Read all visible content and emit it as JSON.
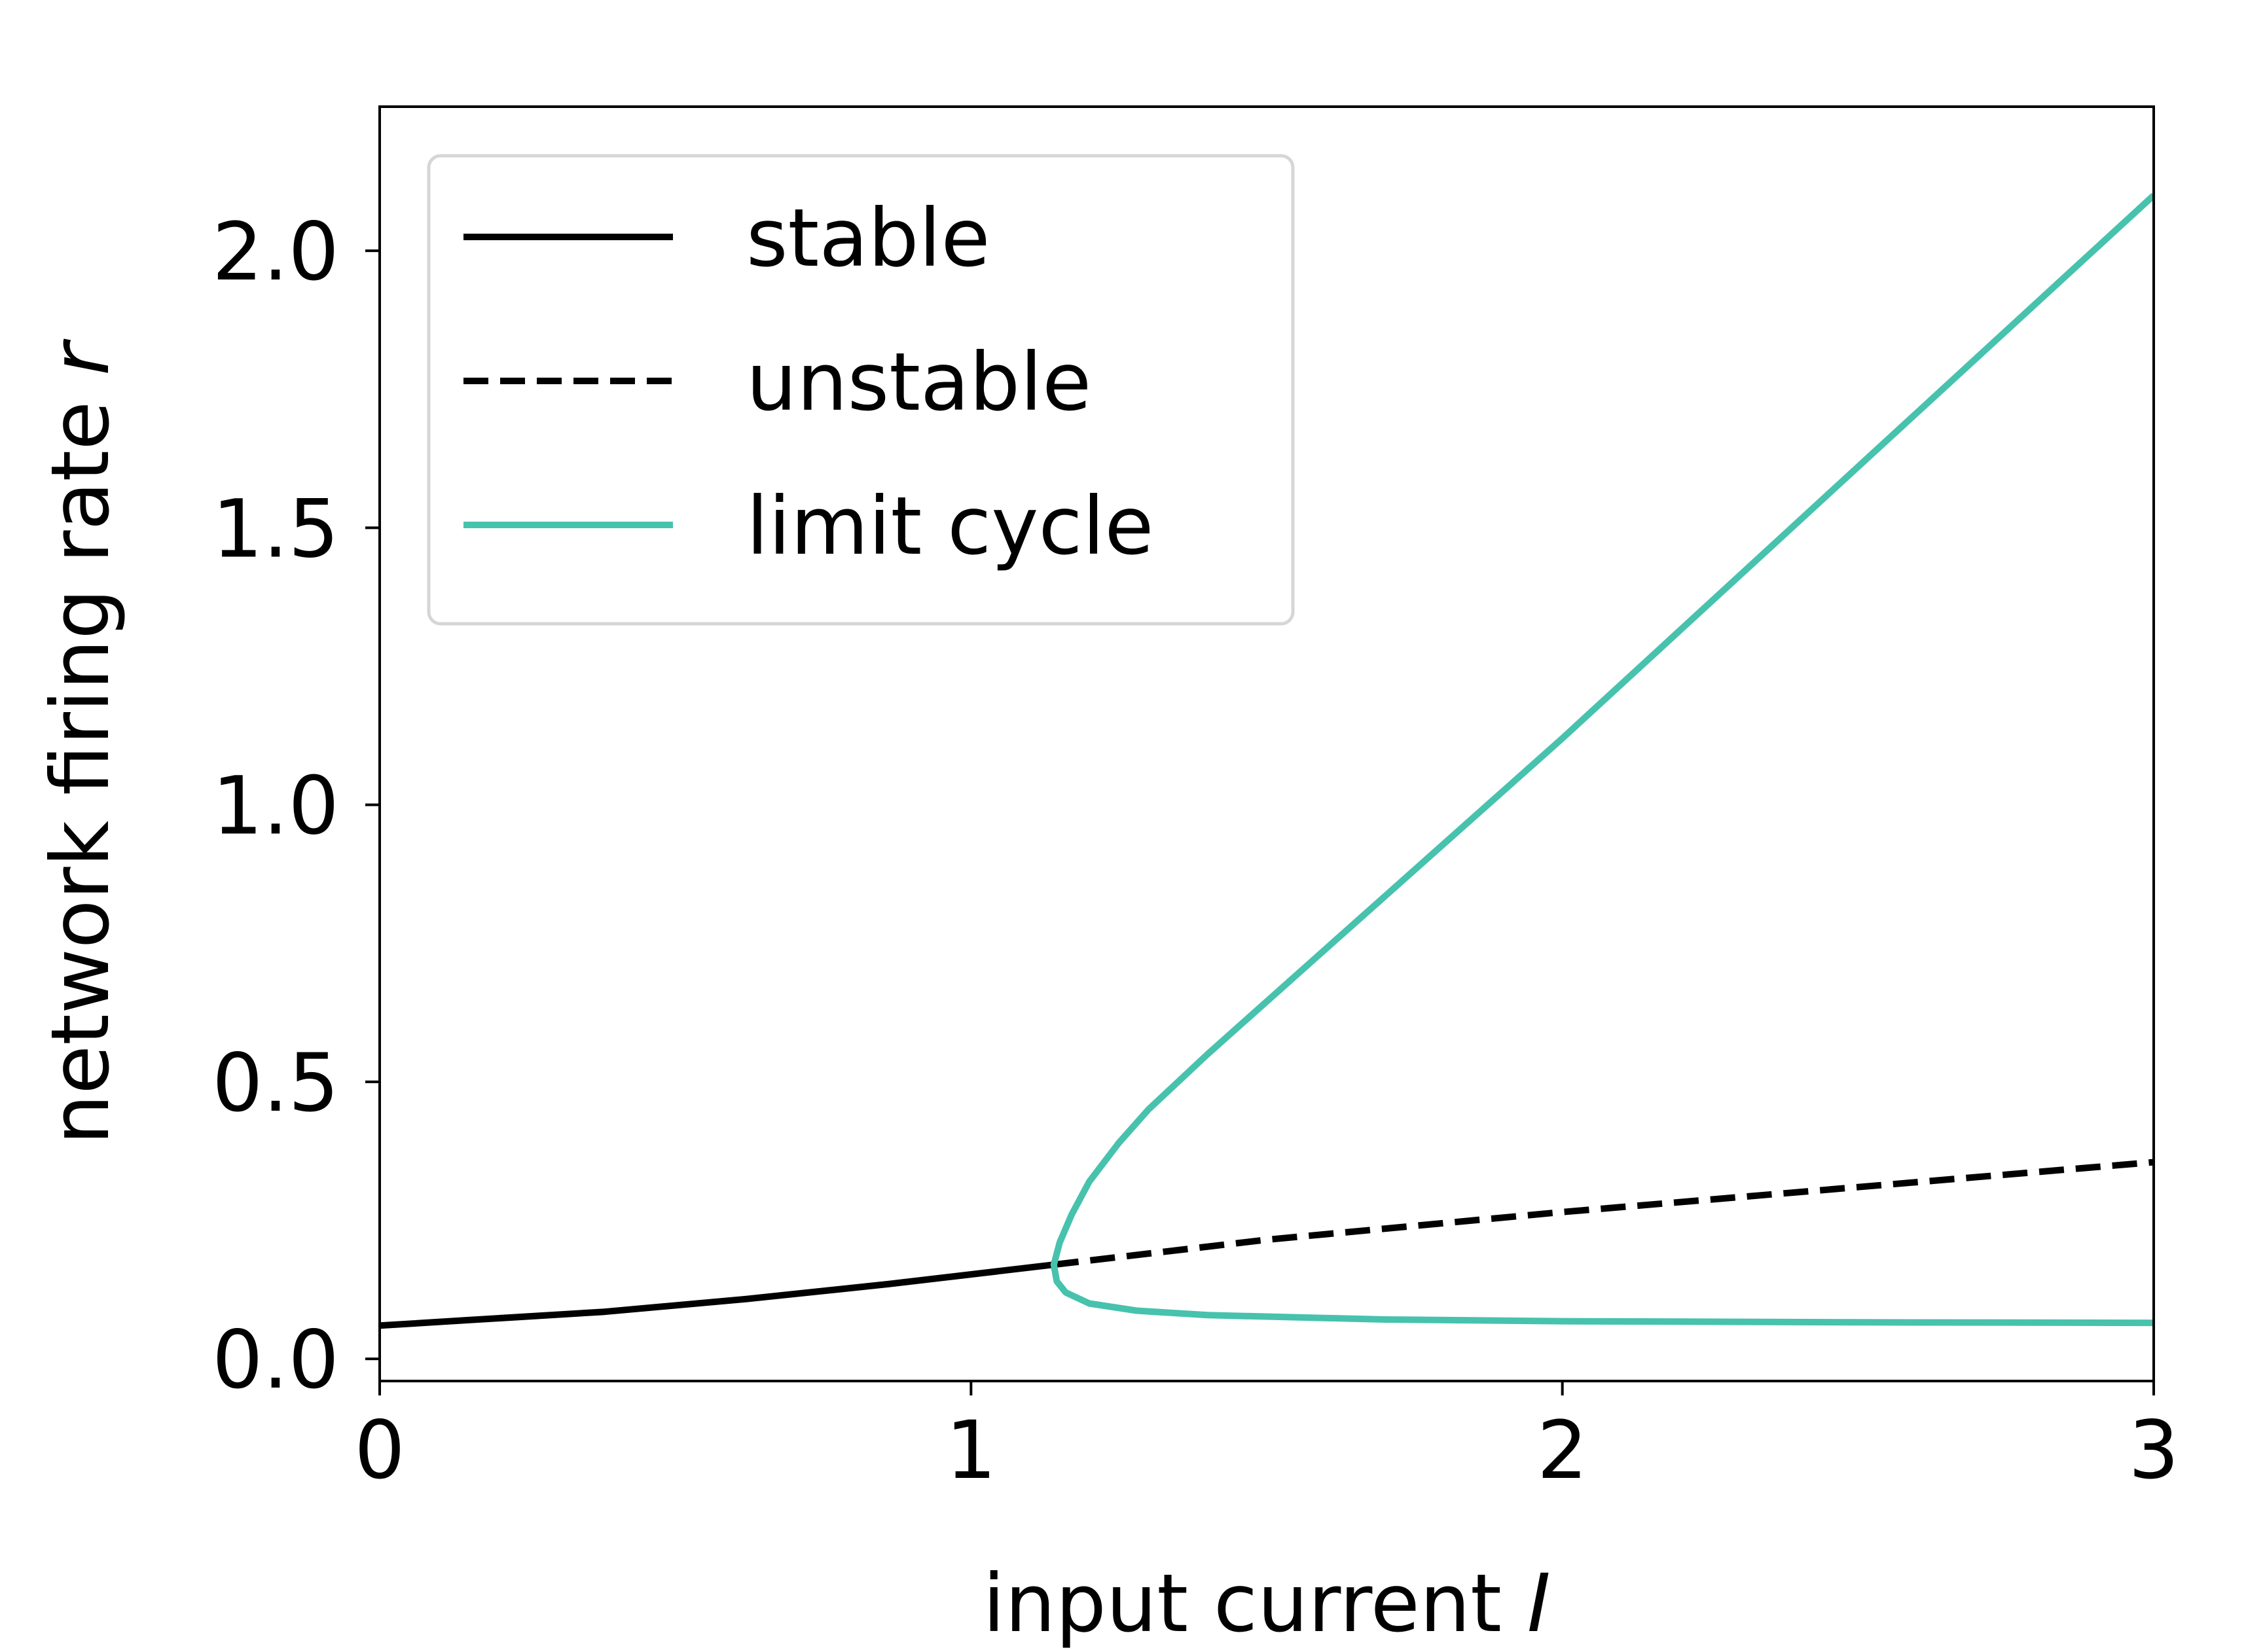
{
  "chart_data": {
    "type": "line",
    "xlabel": {
      "text": "input current ",
      "symbol": "I"
    },
    "ylabel": {
      "text": "network firing rate ",
      "symbol": "r"
    },
    "xlim": [
      0,
      3
    ],
    "ylim": [
      -0.04,
      2.26
    ],
    "xticks": [
      0,
      1,
      2,
      3
    ],
    "xtick_labels": [
      "0",
      "1",
      "2",
      "3"
    ],
    "yticks": [
      0.0,
      0.5,
      1.0,
      1.5,
      2.0
    ],
    "ytick_labels": [
      "0.0",
      "0.5",
      "1.0",
      "1.5",
      "2.0"
    ],
    "grid": false,
    "legend": {
      "placement": "top-left"
    },
    "series": [
      {
        "name": "stable",
        "color": "#000000",
        "style": "solid",
        "x": [
          0.0,
          0.15,
          0.38,
          0.62,
          0.86,
          1.14
        ],
        "y": [
          0.06,
          0.07,
          0.085,
          0.108,
          0.135,
          0.17
        ]
      },
      {
        "name": "unstable",
        "color": "#000000",
        "style": "dashed",
        "x": [
          1.14,
          1.5,
          2.0,
          2.5,
          3.0
        ],
        "y": [
          0.17,
          0.215,
          0.265,
          0.31,
          0.355
        ]
      },
      {
        "name": "limit cycle",
        "color": "#47c2ad",
        "style": "solid",
        "x": [
          3.0,
          2.5,
          2.0,
          1.6,
          1.4,
          1.3,
          1.25,
          1.2,
          1.17,
          1.15,
          1.14,
          1.145,
          1.16,
          1.2,
          1.28,
          1.4,
          1.7,
          2.0,
          2.5,
          3.0
        ],
        "y": [
          2.1,
          1.61,
          1.12,
          0.74,
          0.55,
          0.45,
          0.39,
          0.32,
          0.26,
          0.21,
          0.17,
          0.14,
          0.12,
          0.1,
          0.087,
          0.079,
          0.071,
          0.068,
          0.066,
          0.065
        ]
      }
    ]
  }
}
